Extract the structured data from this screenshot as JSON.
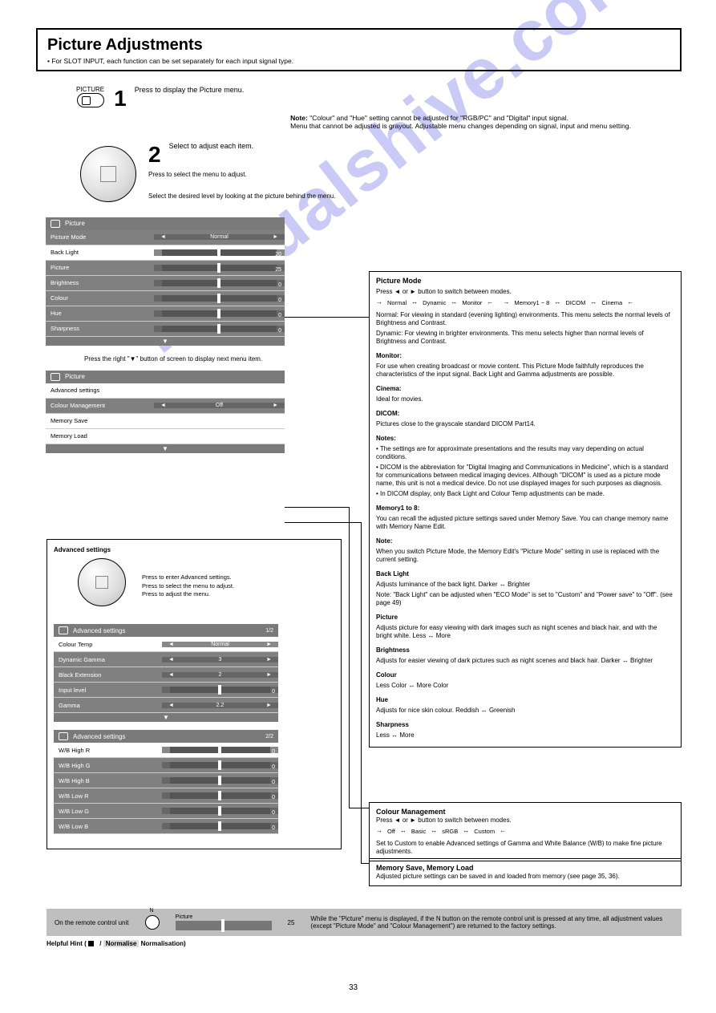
{
  "title": "Picture Adjustments",
  "subtitle": "• For SLOT INPUT, each function can be set separately for each input signal type.",
  "step1": {
    "num": "1",
    "btn_label": "PICTURE",
    "text": "Press to display the Picture menu.",
    "note_line1": "Note:",
    "note_line2": "\"Colour\" and \"Hue\" setting cannot be adjusted for \"RGB/PC\" and \"Digital\" input signal.",
    "note_line3": "Menu that cannot be adjusted is grayout. Adjustable menu changes depending on signal, input and menu setting."
  },
  "step2": {
    "num": "2",
    "text": "Select to adjust each item.",
    "labels": {
      "up": "Press to select the menu to adjust.",
      "lr": "Select the desired level by looking at the picture behind the menu."
    }
  },
  "menu1": {
    "header": "Picture",
    "rows": [
      {
        "label": "Picture Mode",
        "value": "Normal",
        "type": "arrows",
        "tone": "dark"
      },
      {
        "label": "Back Light",
        "value": "20",
        "type": "slider",
        "tone": "light"
      },
      {
        "label": "Picture",
        "value": "25",
        "type": "slider",
        "tone": "dark"
      },
      {
        "label": "Brightness",
        "value": "0",
        "type": "slider",
        "tone": "dark"
      },
      {
        "label": "Colour",
        "value": "0",
        "type": "slider",
        "tone": "dark"
      },
      {
        "label": "Hue",
        "value": "0",
        "type": "slider",
        "tone": "dark"
      },
      {
        "label": "Sharpness",
        "value": "0",
        "type": "slider",
        "tone": "dark"
      }
    ]
  },
  "between_menus": "Press the right \"▼\" button of screen to display next menu item.",
  "menu2": {
    "header": "Picture",
    "rows": [
      {
        "label": "Advanced settings",
        "type": "text",
        "tone": "light"
      },
      {
        "label": "Colour Management",
        "value": "Off",
        "type": "arrows",
        "tone": "dark"
      },
      {
        "label": "Memory Save",
        "type": "text",
        "tone": "light"
      },
      {
        "label": "Memory Load",
        "type": "text",
        "tone": "light"
      }
    ]
  },
  "adv": {
    "title": "Advanced settings",
    "dpad_label1": "Press to enter Advanced settings.",
    "dpad_label2": "Press to select the menu to adjust.",
    "dpad_label3": "Press to adjust the menu.",
    "menuA": {
      "header": "Advanced settings",
      "note": "1/2",
      "rows": [
        {
          "label": "Colour Temp",
          "value": "Normal",
          "type": "arrows",
          "tone": "light"
        },
        {
          "label": "Dynamic Gamma",
          "value": "3",
          "type": "arrows",
          "tone": "dark"
        },
        {
          "label": "Black Extension",
          "value": "2",
          "type": "arrows",
          "tone": "dark"
        },
        {
          "label": "Input level",
          "value": "0",
          "type": "slider",
          "tone": "dark"
        },
        {
          "label": "Gamma",
          "value": "2.2",
          "type": "arrows",
          "tone": "dark"
        }
      ]
    },
    "menuB": {
      "header": "Advanced settings",
      "note": "2/2",
      "rows": [
        {
          "label": "W/B High R",
          "value": "0",
          "type": "slider",
          "tone": "light"
        },
        {
          "label": "W/B High G",
          "value": "0",
          "type": "slider",
          "tone": "dark"
        },
        {
          "label": "W/B High B",
          "value": "0",
          "type": "slider",
          "tone": "dark"
        },
        {
          "label": "W/B Low R",
          "value": "0",
          "type": "slider",
          "tone": "dark"
        },
        {
          "label": "W/B Low G",
          "value": "0",
          "type": "slider",
          "tone": "dark"
        },
        {
          "label": "W/B Low B",
          "value": "0",
          "type": "slider",
          "tone": "dark"
        }
      ]
    }
  },
  "right": {
    "mode_title": "Picture Mode",
    "mode_press": "Press ◄ or ► button to switch between modes.",
    "mode_chain": [
      "Normal",
      "Dynamic",
      "Monitor",
      "Cinema",
      "DICOM",
      "Memory1 ~ 8"
    ],
    "mode_normal": "Normal: For viewing in standard (evening lighting) environments. This menu selects the normal levels of Brightness and Contrast.",
    "mode_dynamic": "Dynamic: For viewing in brighter environments. This menu selects higher than normal levels of Brightness and Contrast.",
    "mode_monitor_t": "Monitor:",
    "mode_monitor": "For use when creating broadcast or movie content. This Picture Mode faithfully reproduces the characteristics of the input signal. Back Light and Gamma adjustments are possible.",
    "mode_cinema_t": "Cinema:",
    "mode_cinema": "Ideal for movies.",
    "mode_dicom_t": "DICOM:",
    "mode_dicom": "Pictures close to the grayscale standard DICOM Part14.",
    "dicom_note1": "Notes:",
    "dicom_note2": "• The settings are for approximate presentations and the results may vary depending on actual conditions.",
    "dicom_note3": "• DICOM is the abbreviation for \"Digital Imaging and Communications in Medicine\", which is a standard for communications between medical imaging devices. Although \"DICOM\" is used as a picture mode name, this unit is not a medical device. Do not use displayed images for such purposes as diagnosis.",
    "dicom_note4": "• In DICOM display, only Back Light and Colour Temp adjustments can be made.",
    "memory_t": "Memory1 to 8:",
    "memory": "You can recall the adjusted picture settings saved under Memory Save. You can change memory name with Memory Name Edit.",
    "note_t": "Note:",
    "note_body": "When you switch Picture Mode, the Memory Edit's \"Picture Mode\" setting in use is replaced with the current setting.",
    "bl_t": "Back Light",
    "bl": "Adjusts luminance of the back light. Darker ↔ Brighter",
    "bl_note": "Note: \"Back Light\" can be adjusted when \"ECO Mode\" is set to \"Custom\" and \"Power save\" to \"Off\". (see page 49)",
    "pic_t": "Picture",
    "pic": "Adjusts picture for easy viewing with dark images such as night scenes and black hair, and with the bright white. Less ↔ More",
    "bri_t": "Brightness",
    "bri": "Adjusts for easier viewing of dark pictures such as night scenes and black hair. Darker ↔ Brighter",
    "col_t": "Colour",
    "col": "Less Color ↔ More Color",
    "hue_t": "Hue",
    "hue": "Adjusts for nice skin colour. Reddish ↔ Greenish",
    "sha_t": "Sharpness",
    "sha": "Less ↔ More",
    "cm_title": "Colour Management",
    "cm_press": "Press ◄ or ► button to switch between modes.",
    "cm_chain": [
      "Off",
      "Basic",
      "sRGB",
      "Custom"
    ],
    "cm_body": "Set to Custom to enable Advanced settings of Gamma and White Balance (W/B) to make fine picture adjustments.",
    "ms_t": "Memory Save, Memory Load",
    "ms_body": "Adjusted picture settings can be saved in and loaded from memory (see page 35, 36)."
  },
  "norm": {
    "lead": "On the remote control unit",
    "pic": "Picture",
    "val": "25",
    "text1": "While the \"Picture\" menu is displayed, if the N button on the remote control unit is pressed at any time, all adjustment values (except \"Picture Mode\" and \"Colour Management\") are returned to the factory settings.",
    "tip_t": "Helpful Hint (",
    "tip_n": "/",
    "tip_norm": "Normalise",
    "tip_norm2": " Normalisation)"
  },
  "pgno": "33"
}
